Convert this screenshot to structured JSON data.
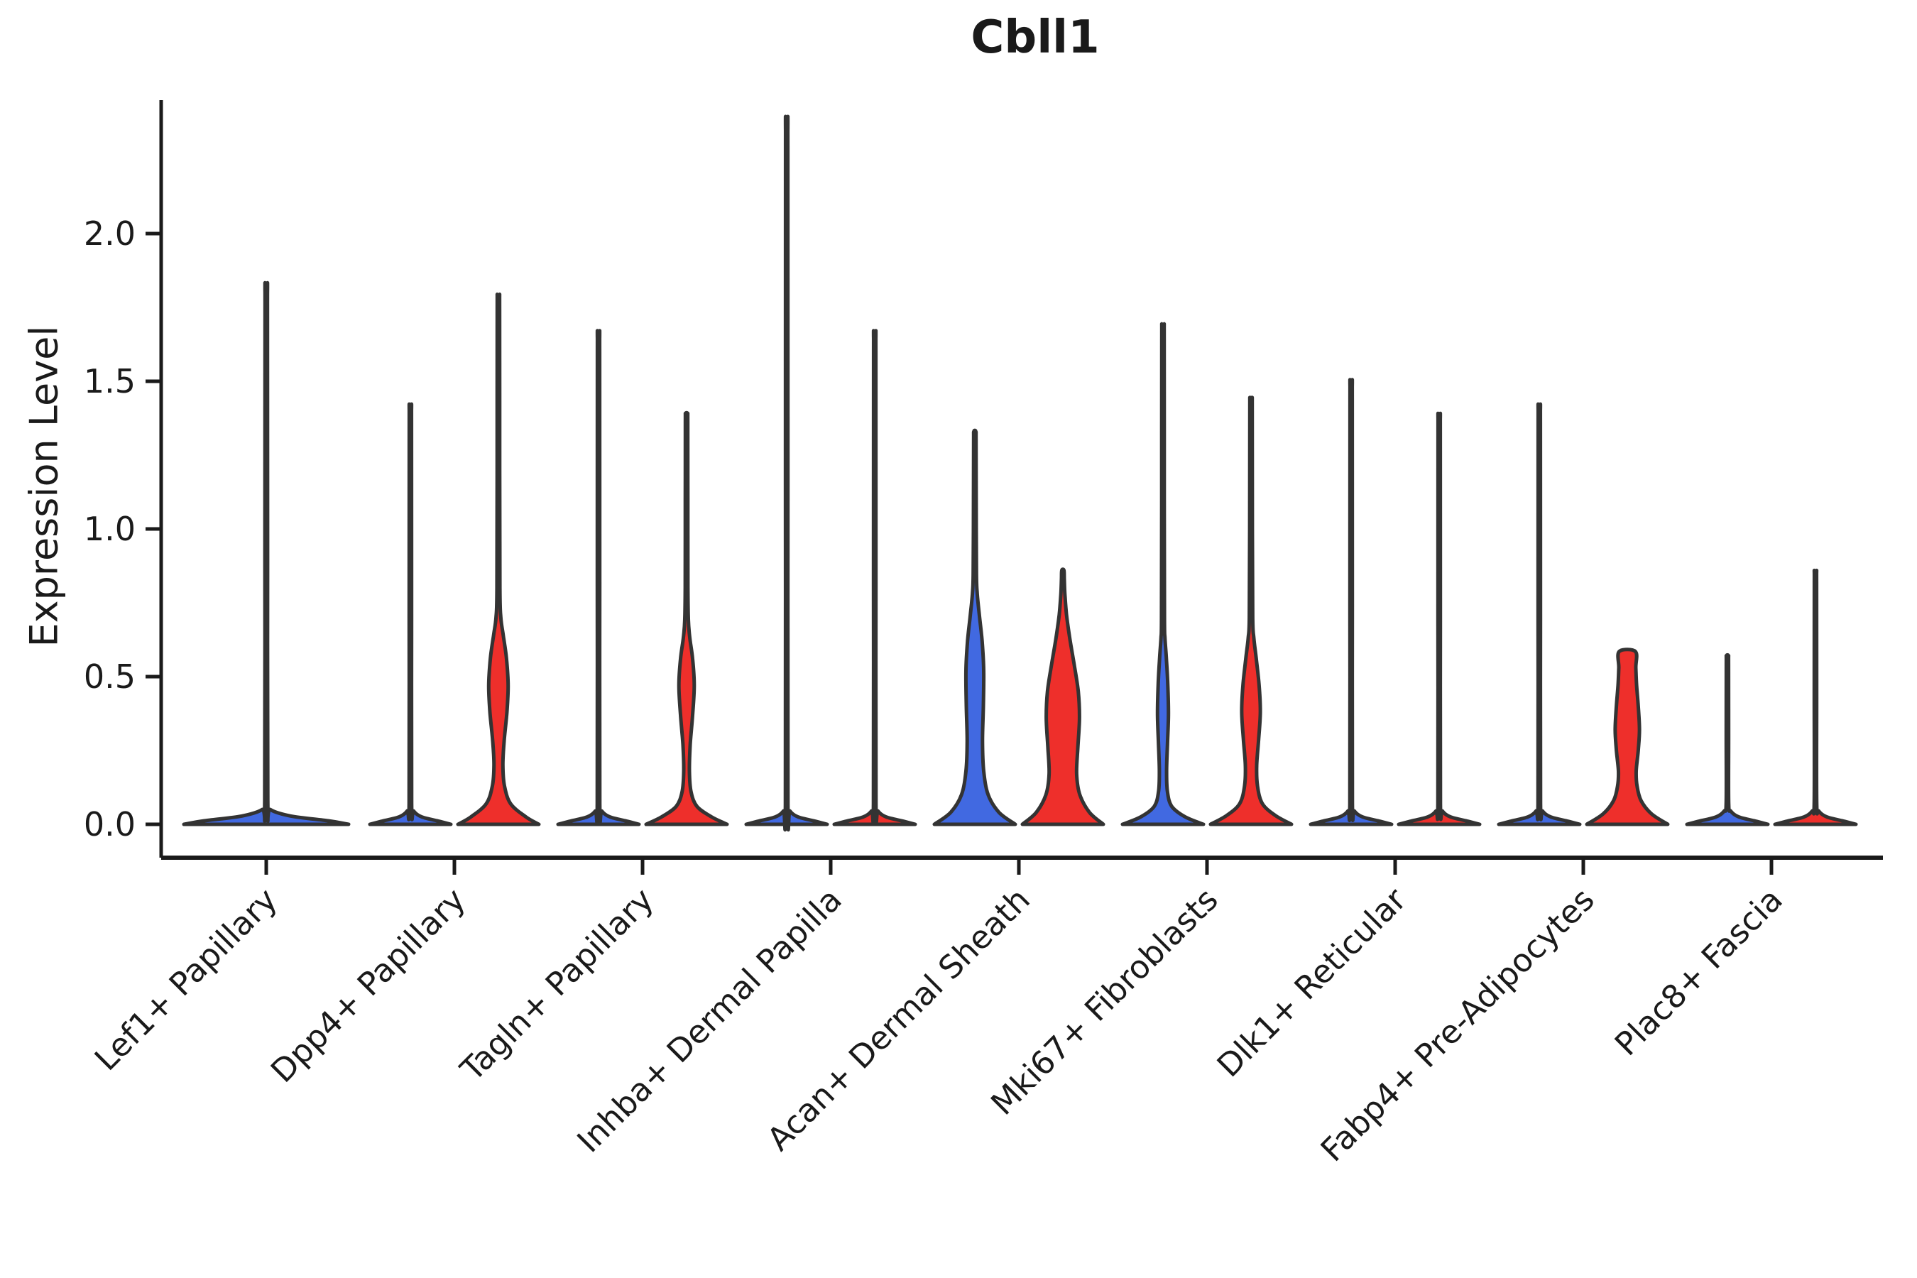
{
  "chart_data": {
    "type": "violin",
    "title": "Cbll1",
    "ylabel": "Expression Level",
    "xlabel": "",
    "yticks": [
      "0.0",
      "0.5",
      "1.0",
      "1.5",
      "2.0"
    ],
    "ytick_values": [
      0.0,
      0.5,
      1.0,
      1.5,
      2.0
    ],
    "ylim": [
      -0.11,
      2.45
    ],
    "grid": false,
    "legend": "none",
    "colors": {
      "blue": "#4169E1",
      "red": "#EE2F2B",
      "outline": "#333333",
      "axis": "#1a1a1a",
      "background": "#ffffff"
    },
    "categories": [
      "Lef1+ Papillary",
      "Dpp4+ Papillary",
      "Tagln+ Papillary",
      "Inhba+ Dermal Papilla",
      "Acan+ Dermal Sheath",
      "Mki67+ Fibroblasts",
      "Dlk1+ Reticular",
      "Fabp4+ Pre-Adipocytes",
      "Plac8+ Fascia"
    ],
    "groups": [
      {
        "category": "Lef1+ Papillary",
        "violins": [
          {
            "color": "blue",
            "position": "center",
            "full_width": true,
            "max": 1.79,
            "cap": false,
            "profile": [
              [
                0,
                1.0
              ],
              [
                0.012,
                0.75
              ],
              [
                0.028,
                0.3
              ],
              [
                0.05,
                0.05
              ],
              [
                0.08,
                0.019
              ],
              [
                0.9,
                0.016
              ],
              [
                1.76,
                0.015
              ],
              [
                1.79,
                0.013
              ]
            ]
          }
        ]
      },
      {
        "category": "Dpp4+ Papillary",
        "violins": [
          {
            "color": "blue",
            "position": "left",
            "max": 1.4,
            "cap": false,
            "profile": [
              [
                0,
                1.0
              ],
              [
                0.01,
                0.72
              ],
              [
                0.025,
                0.28
              ],
              [
                0.045,
                0.08
              ],
              [
                0.07,
                0.032
              ],
              [
                0.7,
                0.03
              ],
              [
                1.36,
                0.028
              ],
              [
                1.4,
                0.025
              ]
            ]
          },
          {
            "color": "red",
            "position": "right",
            "max": 1.78,
            "cap": false,
            "profile": [
              [
                0,
                1.0
              ],
              [
                0.025,
                0.68
              ],
              [
                0.07,
                0.3
              ],
              [
                0.13,
                0.15
              ],
              [
                0.2,
                0.11
              ],
              [
                0.28,
                0.14
              ],
              [
                0.38,
                0.21
              ],
              [
                0.47,
                0.24
              ],
              [
                0.56,
                0.2
              ],
              [
                0.64,
                0.12
              ],
              [
                0.7,
                0.06
              ],
              [
                0.8,
                0.036
              ],
              [
                1.2,
                0.032
              ],
              [
                1.74,
                0.03
              ],
              [
                1.78,
                0.025
              ]
            ]
          }
        ]
      },
      {
        "category": "Tagln+ Papillary",
        "violins": [
          {
            "color": "blue",
            "position": "left",
            "max": 1.64,
            "cap": false,
            "profile": [
              [
                0,
                1.0
              ],
              [
                0.01,
                0.72
              ],
              [
                0.025,
                0.28
              ],
              [
                0.045,
                0.08
              ],
              [
                0.07,
                0.032
              ],
              [
                0.82,
                0.03
              ],
              [
                1.6,
                0.028
              ],
              [
                1.64,
                0.025
              ]
            ]
          },
          {
            "color": "red",
            "position": "right",
            "max": 1.39,
            "cap": false,
            "profile": [
              [
                0,
                1.0
              ],
              [
                0.025,
                0.62
              ],
              [
                0.06,
                0.26
              ],
              [
                0.11,
                0.11
              ],
              [
                0.18,
                0.07
              ],
              [
                0.27,
                0.09
              ],
              [
                0.37,
                0.15
              ],
              [
                0.47,
                0.19
              ],
              [
                0.56,
                0.15
              ],
              [
                0.63,
                0.08
              ],
              [
                0.69,
                0.045
              ],
              [
                0.8,
                0.034
              ],
              [
                1.1,
                0.031
              ],
              [
                1.36,
                0.029
              ],
              [
                1.39,
                0.024
              ]
            ]
          }
        ]
      },
      {
        "category": "Inhba+ Dermal Papilla",
        "violins": [
          {
            "color": "blue",
            "position": "left",
            "max": 2.34,
            "cap": false,
            "profile": [
              [
                0,
                1.0
              ],
              [
                0.01,
                0.72
              ],
              [
                0.025,
                0.28
              ],
              [
                0.045,
                0.08
              ],
              [
                0.07,
                0.032
              ],
              [
                1.17,
                0.03
              ],
              [
                2.3,
                0.028
              ],
              [
                2.34,
                0.025
              ]
            ]
          },
          {
            "color": "red",
            "position": "right",
            "max": 1.64,
            "cap": false,
            "profile": [
              [
                0,
                1.0
              ],
              [
                0.01,
                0.72
              ],
              [
                0.025,
                0.28
              ],
              [
                0.045,
                0.08
              ],
              [
                0.07,
                0.032
              ],
              [
                0.82,
                0.03
              ],
              [
                1.6,
                0.028
              ],
              [
                1.64,
                0.025
              ]
            ]
          }
        ]
      },
      {
        "category": "Acan+ Dermal Sheath",
        "violins": [
          {
            "color": "blue",
            "position": "left",
            "max": 1.33,
            "cap": false,
            "profile": [
              [
                0,
                1.0
              ],
              [
                0.04,
                0.6
              ],
              [
                0.1,
                0.33
              ],
              [
                0.18,
                0.22
              ],
              [
                0.28,
                0.19
              ],
              [
                0.4,
                0.21
              ],
              [
                0.52,
                0.22
              ],
              [
                0.62,
                0.18
              ],
              [
                0.71,
                0.11
              ],
              [
                0.78,
                0.06
              ],
              [
                0.85,
                0.04
              ],
              [
                1.1,
                0.033
              ],
              [
                1.3,
                0.03
              ],
              [
                1.33,
                0.025
              ]
            ]
          },
          {
            "color": "red",
            "position": "right",
            "max": 0.86,
            "cap": false,
            "profile": [
              [
                0,
                1.0
              ],
              [
                0.04,
                0.66
              ],
              [
                0.1,
                0.42
              ],
              [
                0.17,
                0.34
              ],
              [
                0.26,
                0.37
              ],
              [
                0.36,
                0.41
              ],
              [
                0.45,
                0.38
              ],
              [
                0.54,
                0.28
              ],
              [
                0.63,
                0.17
              ],
              [
                0.71,
                0.09
              ],
              [
                0.78,
                0.05
              ],
              [
                0.83,
                0.035
              ],
              [
                0.86,
                0.027
              ]
            ]
          }
        ]
      },
      {
        "category": "Mki67+ Fibroblasts",
        "violins": [
          {
            "color": "blue",
            "position": "left",
            "max": 1.68,
            "cap": false,
            "profile": [
              [
                0,
                1.0
              ],
              [
                0.025,
                0.55
              ],
              [
                0.06,
                0.22
              ],
              [
                0.11,
                0.11
              ],
              [
                0.18,
                0.09
              ],
              [
                0.27,
                0.11
              ],
              [
                0.37,
                0.135
              ],
              [
                0.47,
                0.12
              ],
              [
                0.56,
                0.085
              ],
              [
                0.63,
                0.05
              ],
              [
                0.7,
                0.036
              ],
              [
                1.1,
                0.032
              ],
              [
                1.64,
                0.03
              ],
              [
                1.68,
                0.024
              ]
            ]
          },
          {
            "color": "red",
            "position": "right",
            "max": 1.44,
            "cap": false,
            "profile": [
              [
                0,
                1.0
              ],
              [
                0.03,
                0.6
              ],
              [
                0.07,
                0.28
              ],
              [
                0.13,
                0.16
              ],
              [
                0.2,
                0.14
              ],
              [
                0.29,
                0.19
              ],
              [
                0.38,
                0.23
              ],
              [
                0.47,
                0.2
              ],
              [
                0.56,
                0.13
              ],
              [
                0.63,
                0.07
              ],
              [
                0.7,
                0.042
              ],
              [
                1.0,
                0.034
              ],
              [
                1.4,
                0.03
              ],
              [
                1.44,
                0.025
              ]
            ]
          }
        ]
      },
      {
        "category": "Dlk1+ Reticular",
        "violins": [
          {
            "color": "blue",
            "position": "left",
            "max": 1.48,
            "cap": false,
            "profile": [
              [
                0,
                1.0
              ],
              [
                0.01,
                0.72
              ],
              [
                0.025,
                0.28
              ],
              [
                0.045,
                0.08
              ],
              [
                0.07,
                0.032
              ],
              [
                0.74,
                0.03
              ],
              [
                1.44,
                0.028
              ],
              [
                1.48,
                0.025
              ]
            ]
          },
          {
            "color": "red",
            "position": "right",
            "max": 1.37,
            "cap": false,
            "profile": [
              [
                0,
                1.0
              ],
              [
                0.01,
                0.72
              ],
              [
                0.025,
                0.28
              ],
              [
                0.045,
                0.08
              ],
              [
                0.07,
                0.032
              ],
              [
                0.69,
                0.03
              ],
              [
                1.33,
                0.028
              ],
              [
                1.37,
                0.025
              ]
            ]
          }
        ]
      },
      {
        "category": "Fabp4+ Pre-Adipocytes",
        "violins": [
          {
            "color": "blue",
            "position": "left",
            "max": 1.4,
            "cap": false,
            "profile": [
              [
                0,
                1.0
              ],
              [
                0.01,
                0.72
              ],
              [
                0.025,
                0.28
              ],
              [
                0.045,
                0.08
              ],
              [
                0.07,
                0.032
              ],
              [
                0.7,
                0.03
              ],
              [
                1.36,
                0.028
              ],
              [
                1.4,
                0.025
              ]
            ]
          },
          {
            "color": "red",
            "position": "right",
            "max": 0.585,
            "cap": true,
            "profile": [
              [
                0,
                1.0
              ],
              [
                0.035,
                0.6
              ],
              [
                0.08,
                0.34
              ],
              [
                0.13,
                0.24
              ],
              [
                0.18,
                0.22
              ],
              [
                0.25,
                0.27
              ],
              [
                0.32,
                0.3
              ],
              [
                0.4,
                0.27
              ],
              [
                0.47,
                0.23
              ],
              [
                0.53,
                0.21
              ],
              [
                0.585,
                0.2
              ]
            ]
          }
        ]
      },
      {
        "category": "Plac8+ Fascia",
        "violins": [
          {
            "color": "blue",
            "position": "left",
            "max": 0.57,
            "cap": false,
            "profile": [
              [
                0,
                1.0
              ],
              [
                0.01,
                0.72
              ],
              [
                0.025,
                0.28
              ],
              [
                0.045,
                0.08
              ],
              [
                0.07,
                0.032
              ],
              [
                0.29,
                0.03
              ],
              [
                0.54,
                0.028
              ],
              [
                0.57,
                0.025
              ]
            ]
          },
          {
            "color": "red",
            "position": "right",
            "max": 0.85,
            "cap": false,
            "profile": [
              [
                0,
                1.0
              ],
              [
                0.01,
                0.72
              ],
              [
                0.025,
                0.28
              ],
              [
                0.045,
                0.08
              ],
              [
                0.07,
                0.032
              ],
              [
                0.43,
                0.03
              ],
              [
                0.82,
                0.028
              ],
              [
                0.85,
                0.025
              ]
            ]
          }
        ]
      }
    ]
  }
}
